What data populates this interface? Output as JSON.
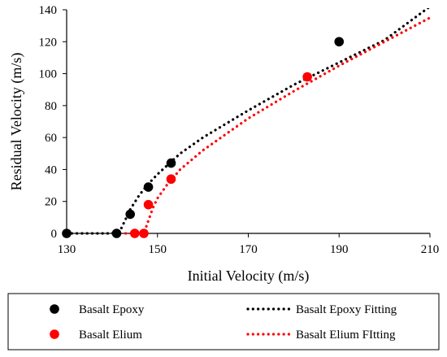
{
  "chart_data": {
    "type": "scatter",
    "xlabel": "Initial Velocity (m/s)",
    "ylabel": "Residual Velocity (m/s)",
    "xlim": [
      130,
      210
    ],
    "ylim": [
      0,
      140
    ],
    "x_ticks": [
      130,
      150,
      170,
      190,
      210
    ],
    "y_ticks": [
      0,
      20,
      40,
      60,
      80,
      100,
      120,
      140
    ],
    "grid": false,
    "legend_position": "bottom",
    "series": [
      {
        "name": "Basalt Epoxy",
        "kind": "points",
        "color": "#000000",
        "x": [
          130,
          141,
          144,
          148,
          153,
          190
        ],
        "y": [
          0,
          0,
          12,
          29,
          44,
          120
        ]
      },
      {
        "name": "Basalt Elium",
        "kind": "points",
        "color": "#ff0000",
        "x": [
          145,
          147,
          148,
          153,
          183
        ],
        "y": [
          0,
          0,
          18,
          34,
          98
        ]
      },
      {
        "name": "Basalt Epoxy Fitting",
        "kind": "dotted-line",
        "color": "#000000",
        "x": [
          130,
          140,
          142,
          143,
          144,
          146,
          148,
          150,
          155,
          160,
          170,
          180,
          190,
          200,
          210
        ],
        "y": [
          0,
          0,
          3,
          9,
          15,
          24,
          31,
          37,
          50,
          60,
          77,
          93,
          107,
          121,
          142
        ]
      },
      {
        "name": "Basalt Elium FItting",
        "kind": "dotted-line",
        "color": "#ff0000",
        "x": [
          143,
          147,
          148,
          149,
          150,
          152,
          155,
          160,
          170,
          180,
          190,
          200,
          210
        ],
        "y": [
          0,
          0,
          8,
          16,
          22,
          30,
          40,
          52,
          72,
          89,
          105,
          120,
          135
        ]
      }
    ]
  }
}
